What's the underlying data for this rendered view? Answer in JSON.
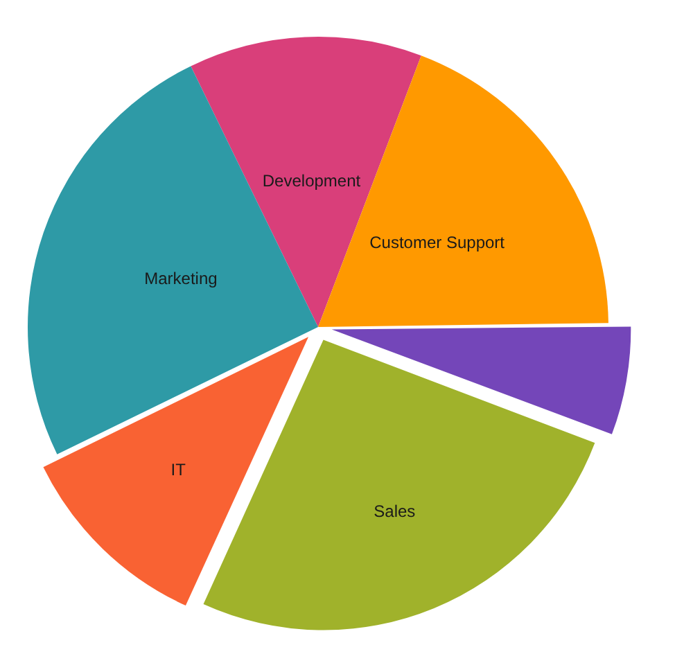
{
  "chart_data": {
    "type": "pie",
    "categories": [
      "Development",
      "Customer Support",
      null,
      "Sales",
      "IT",
      "Marketing"
    ],
    "values": [
      13,
      19,
      6,
      26,
      11,
      25
    ],
    "colors": [
      "#d93f7a",
      "#ff9900",
      "#7446b9",
      "#a0b22b",
      "#f96233",
      "#2e9aa6"
    ],
    "legend": false
  }
}
